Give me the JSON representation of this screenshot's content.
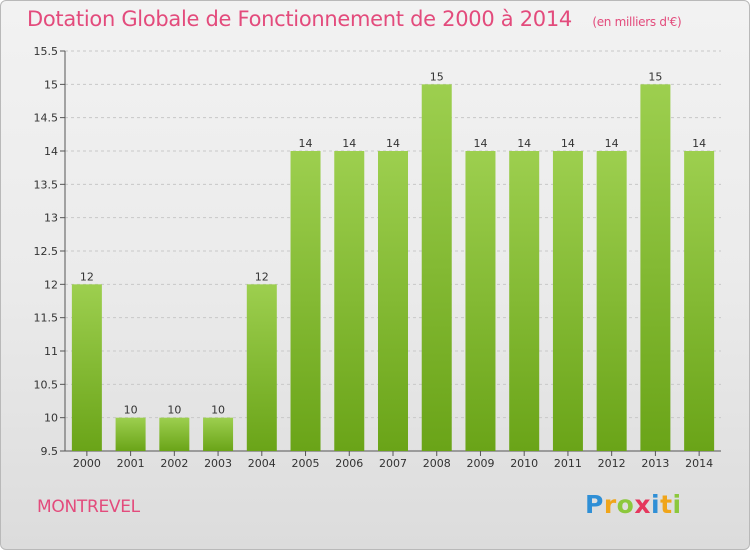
{
  "header": {
    "title": "Dotation Globale de Fonctionnement de 2000 à 2014",
    "unit": "(en milliers d'€)"
  },
  "footer": {
    "commune": "MONTREVEL",
    "logo_text": "Proxiti",
    "logo_letters": [
      {
        "char": "P",
        "color": "#2f8fd6"
      },
      {
        "char": "r",
        "color": "#f0a51a"
      },
      {
        "char": "o",
        "color": "#8cc83c"
      },
      {
        "char": "x",
        "color": "#e5385d"
      },
      {
        "char": "i",
        "color": "#2f8fd6"
      },
      {
        "char": "t",
        "color": "#f0a51a"
      },
      {
        "char": "i",
        "color": "#8cc83c"
      }
    ]
  },
  "colors": {
    "accent": "#e34b7c",
    "bar_light": "#9dcf4f",
    "bar_dark": "#6aa418",
    "axis": "#555555",
    "grid": "#c8c8c8",
    "text": "#333333"
  },
  "chart_data": {
    "type": "bar",
    "title": "Dotation Globale de Fonctionnement de 2000 à 2014",
    "subtitle": "(en milliers d'€)",
    "xlabel": "",
    "ylabel": "",
    "categories": [
      "2000",
      "2001",
      "2002",
      "2003",
      "2004",
      "2005",
      "2006",
      "2007",
      "2008",
      "2009",
      "2010",
      "2011",
      "2012",
      "2013",
      "2014"
    ],
    "values": [
      12,
      10,
      10,
      10,
      12,
      14,
      14,
      14,
      15,
      14,
      14,
      14,
      14,
      15,
      14
    ],
    "labels": [
      "12",
      "10",
      "10",
      "10",
      "12",
      "14",
      "14",
      "14",
      "15",
      "14",
      "14",
      "14",
      "14",
      "15",
      "14"
    ],
    "ylim": [
      9.5,
      15.5
    ],
    "yticks": [
      9.5,
      10,
      10.5,
      11,
      11.5,
      12,
      12.5,
      13,
      13.5,
      14,
      14.5,
      15,
      15.5
    ],
    "ytick_labels": [
      "9.5",
      "10",
      "10.5",
      "11",
      "11.5",
      "12",
      "12.5",
      "13",
      "13.5",
      "14",
      "14.5",
      "15",
      "15.5"
    ],
    "grid": true,
    "legend": "none"
  }
}
